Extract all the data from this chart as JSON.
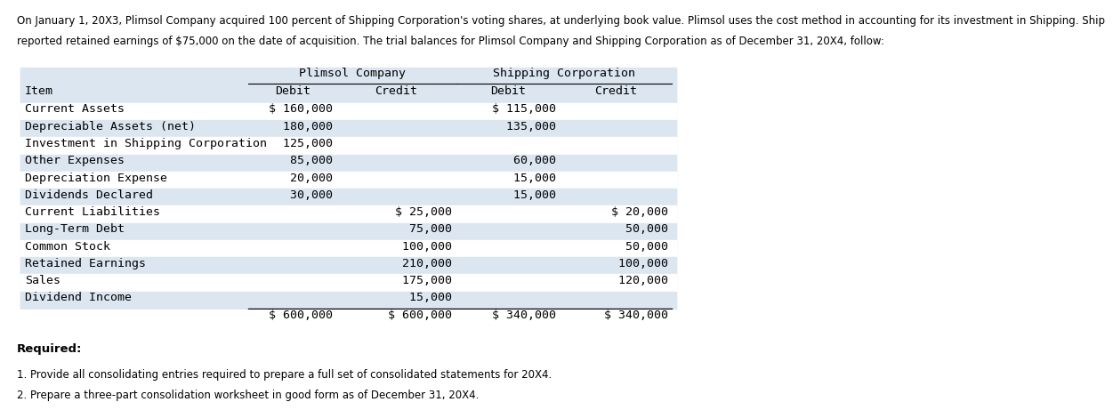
{
  "header_text": "On January 1, 20X3, Plimsol Company acquired 100 percent of Shipping Corporation's voting shares, at underlying book value. Plimsol uses the cost method in accounting for its investment in Shipping. Ship\nreported retained earnings of $75,000 on the date of acquisition. The trial balances for Plimsol Company and Shipping Corporation as of December 31, 20X4, follow:",
  "col_headers_top": [
    "",
    "Plimsol Company",
    "",
    "Shipping Corporation",
    ""
  ],
  "col_headers_sub": [
    "Item",
    "Debit",
    "Credit",
    "Debit",
    "Credit"
  ],
  "rows": [
    [
      "Current Assets",
      "$ 160,000",
      "",
      "$ 115,000",
      ""
    ],
    [
      "Depreciable Assets (net)",
      "  180,000",
      "",
      "  135,000",
      ""
    ],
    [
      "Investment in Shipping Corporation",
      "  125,000",
      "",
      "",
      ""
    ],
    [
      "Other Expenses",
      "   85,000",
      "",
      "   60,000",
      ""
    ],
    [
      "Depreciation Expense",
      "   20,000",
      "",
      "   15,000",
      ""
    ],
    [
      "Dividends Declared",
      "   30,000",
      "",
      "   15,000",
      ""
    ],
    [
      "Current Liabilities",
      "",
      "$ 25,000",
      "",
      "$ 20,000"
    ],
    [
      "Long-Term Debt",
      "",
      "   75,000",
      "",
      "   50,000"
    ],
    [
      "Common Stock",
      "",
      "  100,000",
      "",
      "   50,000"
    ],
    [
      "Retained Earnings",
      "",
      "  210,000",
      "",
      "  100,000"
    ],
    [
      "Sales",
      "",
      "  175,000",
      "",
      "  120,000"
    ],
    [
      "Dividend Income",
      "",
      "   15,000",
      "",
      ""
    ]
  ],
  "totals": [
    "",
    "$ 600,000",
    "$ 600,000",
    "$ 340,000",
    "$ 340,000"
  ],
  "required_text": "Required:",
  "req1": "1. Provide all consolidating entries required to prepare a full set of consolidated statements for 20X4.",
  "req2": "2. Prepare a three-part consolidation worksheet in good form as of December 31, 20X4.",
  "table_bg_color": "#dce6f1",
  "header_row_bg": "#dce6f1",
  "alt_row_bg": "#ffffff",
  "font_family": "monospace",
  "font_size": 9.5,
  "header_font_size": 9.5
}
